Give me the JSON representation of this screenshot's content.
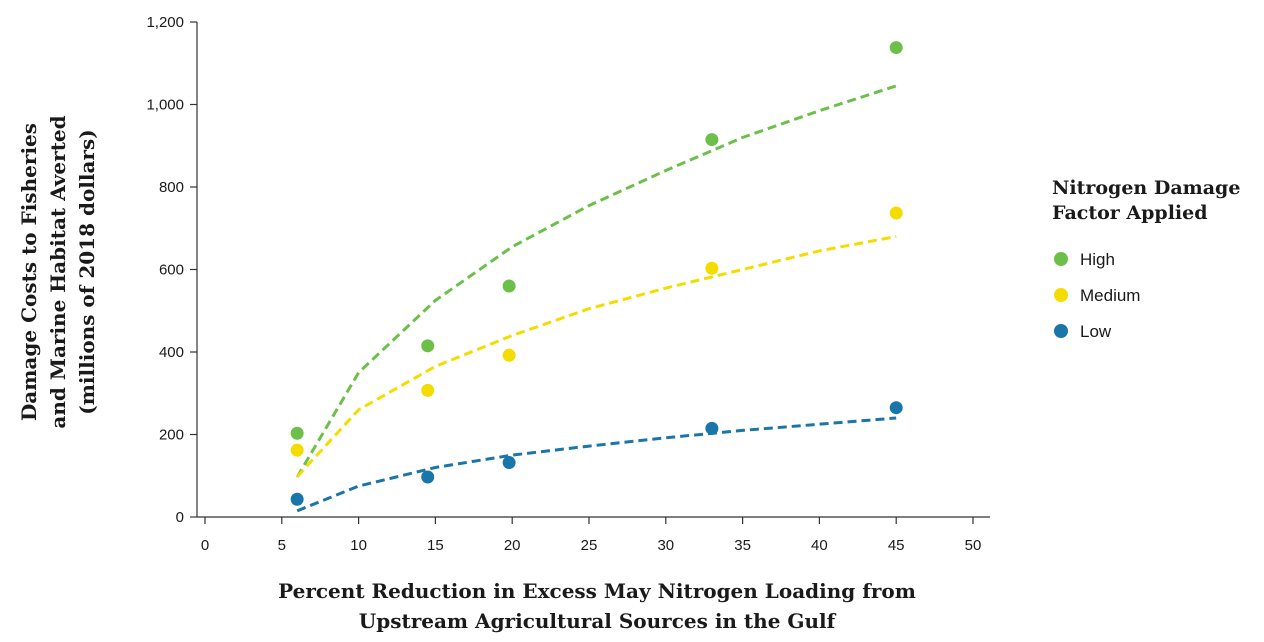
{
  "chart_data": {
    "type": "scatter",
    "xlabel_lines": [
      "Percent Reduction in Excess May Nitrogen Loading from",
      "Upstream Agricultural Sources in the Gulf"
    ],
    "ylabel_lines": [
      "Damage Costs to Fisheries",
      "and Marine Habitat Averted",
      "(millions of 2018 dollars)"
    ],
    "xlim": [
      0,
      50
    ],
    "ylim": [
      0,
      1200
    ],
    "x_ticks": [
      0,
      5,
      10,
      15,
      20,
      25,
      30,
      35,
      40,
      45,
      50
    ],
    "y_ticks": [
      0,
      200,
      400,
      600,
      800,
      1000,
      1200
    ],
    "y_tick_labels": [
      "0",
      "200",
      "400",
      "600",
      "800",
      "1,000",
      "1,200"
    ],
    "grid": false,
    "legend_placement": "right",
    "legend_title_lines": [
      "Nitrogen Damage",
      "Factor Applied"
    ],
    "trendline": "logarithmic, dashed",
    "series": [
      {
        "name": "High",
        "color": "#6cc04a",
        "points": [
          [
            6,
            203
          ],
          [
            14.5,
            415
          ],
          [
            19.8,
            560
          ],
          [
            33,
            915
          ],
          [
            45,
            1138
          ]
        ],
        "trend": [
          [
            6,
            97
          ],
          [
            10,
            350
          ],
          [
            15,
            525
          ],
          [
            20,
            655
          ],
          [
            25,
            755
          ],
          [
            30,
            840
          ],
          [
            35,
            920
          ],
          [
            40,
            985
          ],
          [
            45,
            1045
          ]
        ]
      },
      {
        "name": "Medium",
        "color": "#f5dc00",
        "points": [
          [
            6,
            162
          ],
          [
            14.5,
            307
          ],
          [
            19.8,
            392
          ],
          [
            33,
            603
          ],
          [
            45,
            737
          ]
        ],
        "trend": [
          [
            6,
            98
          ],
          [
            10,
            260
          ],
          [
            15,
            365
          ],
          [
            20,
            440
          ],
          [
            25,
            505
          ],
          [
            30,
            555
          ],
          [
            35,
            600
          ],
          [
            40,
            645
          ],
          [
            45,
            680
          ]
        ]
      },
      {
        "name": "Low",
        "color": "#1a75a8",
        "points": [
          [
            6,
            43
          ],
          [
            14.5,
            97
          ],
          [
            19.8,
            132
          ],
          [
            33,
            215
          ],
          [
            45,
            265
          ]
        ],
        "trend": [
          [
            6,
            15
          ],
          [
            10,
            75
          ],
          [
            15,
            120
          ],
          [
            20,
            150
          ],
          [
            25,
            172
          ],
          [
            30,
            192
          ],
          [
            35,
            210
          ],
          [
            40,
            225
          ],
          [
            45,
            240
          ]
        ]
      }
    ]
  }
}
